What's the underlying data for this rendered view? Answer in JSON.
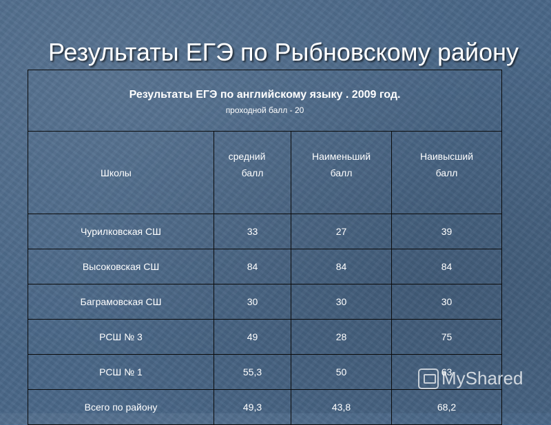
{
  "slide": {
    "title": "Результаты ЕГЭ по Рыбновскому району"
  },
  "table": {
    "caption": "Результаты ЕГЭ по английскому языку . 2009 год.",
    "subcaption": "проходной балл - 20",
    "headers": [
      {
        "line1": "Школы",
        "line2": ""
      },
      {
        "line1": "средний",
        "line2": "балл"
      },
      {
        "line1": "Наименьший",
        "line2": "балл"
      },
      {
        "line1": "Наивысший",
        "line2": "балл"
      }
    ],
    "rows": [
      [
        "Чурилковская СШ",
        "33",
        "27",
        "39"
      ],
      [
        "Высоковская СШ",
        "84",
        "84",
        "84"
      ],
      [
        "Баграмовская СШ",
        "30",
        "30",
        "30"
      ],
      [
        "РСШ № 3",
        "49",
        "28",
        "75"
      ],
      [
        "РСШ № 1",
        "55,3",
        "50",
        "63"
      ],
      [
        "Всего по району",
        "49,3",
        "43,8",
        "68,2"
      ]
    ]
  },
  "watermark": {
    "text": "MyShared",
    "icon": "myshared-logo-icon"
  }
}
